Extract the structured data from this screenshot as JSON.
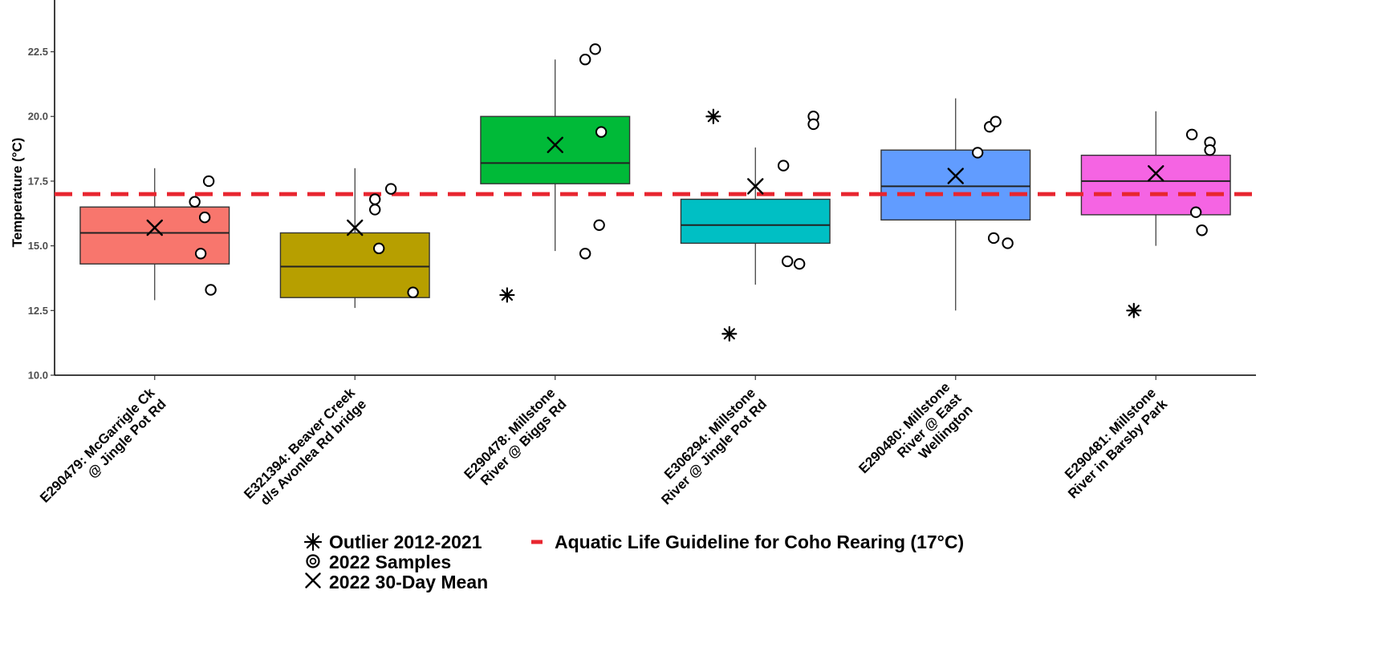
{
  "chart_data": {
    "type": "box",
    "xlabel": "",
    "ylabel": "Temperature (°C)",
    "ylim": [
      10.0,
      24.5
    ],
    "yticks": [
      "10.0",
      "12.5",
      "15.0",
      "17.5",
      "20.0",
      "22.5"
    ],
    "grid": false,
    "guideline": {
      "value": 17,
      "color": "#e8252f",
      "label": "Aquatic Life Guideline for Coho Rearing (17°C)"
    },
    "legend": {
      "placement": "bottom",
      "items": [
        {
          "symbol": "asterisk",
          "label": "Outlier 2012-2021"
        },
        {
          "symbol": "circle",
          "label": "2022 Samples"
        },
        {
          "symbol": "cross",
          "label": "2022 30-Day Mean"
        },
        {
          "symbol": "dash",
          "label": "Aquatic Life Guideline for Coho Rearing (17°C)"
        }
      ]
    },
    "categories": [
      {
        "lines": [
          "E290479: McGarrigle Ck",
          "@ Jingle Pot Rd"
        ],
        "color": "#f8766d",
        "whisker_low": 12.9,
        "q1": 14.3,
        "median": 15.5,
        "q3": 16.5,
        "whisker_high": 18.0,
        "mean_2022": 15.7,
        "outliers": [],
        "samples": [
          [
            0.2,
            16.7
          ],
          [
            0.25,
            16.1
          ],
          [
            0.27,
            17.5
          ],
          [
            0.23,
            14.7
          ],
          [
            0.28,
            13.3
          ]
        ]
      },
      {
        "lines": [
          "E321394: Beaver Creek",
          "d/s Avonlea Rd bridge"
        ],
        "color": "#b79f00",
        "whisker_low": 12.6,
        "q1": 13.0,
        "median": 14.2,
        "q3": 15.5,
        "whisker_high": 18.0,
        "mean_2022": 15.7,
        "outliers": [],
        "samples": [
          [
            0.1,
            16.8
          ],
          [
            0.1,
            16.4
          ],
          [
            0.18,
            17.2
          ],
          [
            0.12,
            14.9
          ],
          [
            0.29,
            13.2
          ]
        ]
      },
      {
        "lines": [
          "E290478: Millstone",
          "River @ Biggs Rd"
        ],
        "color": "#00ba38",
        "whisker_low": 14.8,
        "q1": 17.4,
        "median": 18.2,
        "q3": 20.0,
        "whisker_high": 22.2,
        "mean_2022": 18.9,
        "outliers": [
          [
            -0.24,
            13.1
          ]
        ],
        "samples": [
          [
            0.15,
            22.2
          ],
          [
            0.2,
            22.6
          ],
          [
            0.23,
            19.4
          ],
          [
            0.22,
            15.8
          ],
          [
            0.15,
            14.7
          ]
        ]
      },
      {
        "lines": [
          "E306294: Millstone",
          "River @ Jingle Pot Rd"
        ],
        "color": "#00bfc4",
        "whisker_low": 13.5,
        "q1": 15.1,
        "median": 15.8,
        "q3": 16.8,
        "whisker_high": 18.8,
        "mean_2022": 17.3,
        "outliers": [
          [
            -0.21,
            20.0
          ],
          [
            -0.13,
            11.6
          ]
        ],
        "samples": [
          [
            0.14,
            18.1
          ],
          [
            0.16,
            14.4
          ],
          [
            0.22,
            14.3
          ],
          [
            0.29,
            20.0
          ],
          [
            0.29,
            19.7
          ]
        ]
      },
      {
        "lines": [
          "E290480: Millstone",
          "River @ East",
          "Wellington"
        ],
        "color": "#619cff",
        "whisker_low": 12.5,
        "q1": 16.0,
        "median": 17.3,
        "q3": 18.7,
        "whisker_high": 20.7,
        "mean_2022": 17.7,
        "outliers": [],
        "samples": [
          [
            0.11,
            18.6
          ],
          [
            0.17,
            19.6
          ],
          [
            0.2,
            19.8
          ],
          [
            0.19,
            15.3
          ],
          [
            0.26,
            15.1
          ]
        ]
      },
      {
        "lines": [
          "E290481: Millstone",
          "River in Barsby Park"
        ],
        "color": "#f564e3",
        "whisker_low": 15.0,
        "q1": 16.2,
        "median": 17.5,
        "q3": 18.5,
        "whisker_high": 20.2,
        "mean_2022": 17.8,
        "outliers": [
          [
            -0.11,
            12.5
          ]
        ],
        "samples": [
          [
            0.18,
            19.3
          ],
          [
            0.27,
            19.0
          ],
          [
            0.27,
            18.7
          ],
          [
            0.2,
            16.3
          ],
          [
            0.23,
            15.6
          ]
        ]
      }
    ]
  }
}
